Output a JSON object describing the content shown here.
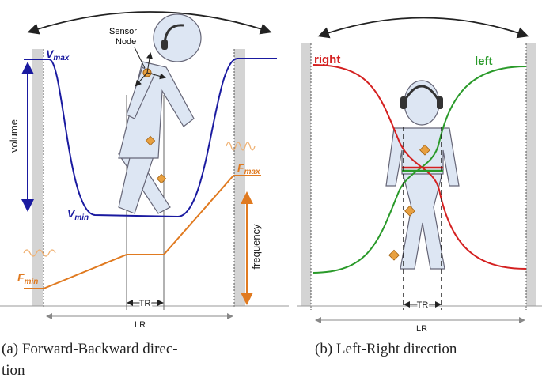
{
  "panel_a": {
    "sensor_label": [
      "Sensor",
      "Node"
    ],
    "vmax": {
      "base": "V",
      "sub": "max"
    },
    "vmin": {
      "base": "V",
      "sub": "min"
    },
    "fmax": {
      "base": "F",
      "sub": "max"
    },
    "fmin": {
      "base": "F",
      "sub": "min"
    },
    "volume": "volume",
    "frequency": "frequency",
    "tr": "TR",
    "lr": "LR",
    "caption": [
      "(a) Forward-Backward direc-",
      "tion"
    ]
  },
  "panel_b": {
    "right": "right",
    "left": "left",
    "tr": "TR",
    "lr": "LR",
    "caption": "(b) Left-Right direction"
  }
}
